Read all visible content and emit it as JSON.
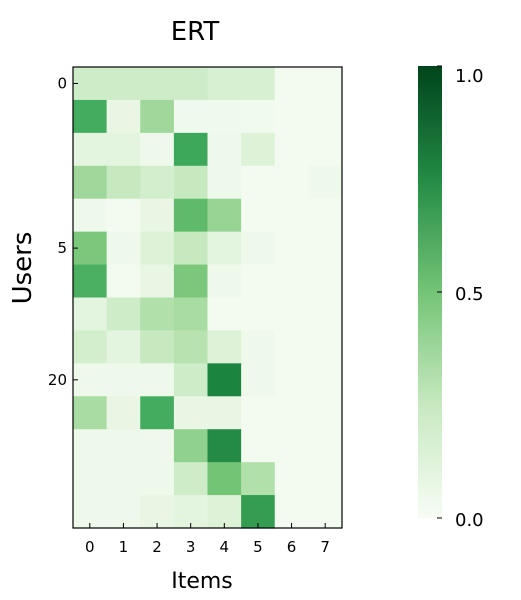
{
  "chart_data": {
    "type": "heatmap",
    "title": "ERT",
    "xlabel": "Items",
    "ylabel": "Users",
    "x_tick_labels": [
      "0",
      "1",
      "2",
      "3",
      "4",
      "5",
      "6",
      "7"
    ],
    "y_tick_labels": [
      {
        "row": 0,
        "label": "0"
      },
      {
        "row": 5,
        "label": "5"
      },
      {
        "row": 9,
        "label": "20"
      }
    ],
    "n_rows": 14,
    "n_cols": 8,
    "values": [
      [
        0.22,
        0.22,
        0.22,
        0.22,
        0.18,
        0.18,
        0.03,
        0.03
      ],
      [
        0.62,
        0.1,
        0.38,
        0.05,
        0.05,
        0.04,
        0.03,
        0.03
      ],
      [
        0.13,
        0.13,
        0.06,
        0.64,
        0.06,
        0.16,
        0.03,
        0.03
      ],
      [
        0.38,
        0.25,
        0.2,
        0.25,
        0.06,
        0.03,
        0.03,
        0.06
      ],
      [
        0.06,
        0.03,
        0.1,
        0.55,
        0.4,
        0.03,
        0.03,
        0.03
      ],
      [
        0.48,
        0.06,
        0.16,
        0.25,
        0.13,
        0.06,
        0.03,
        0.03
      ],
      [
        0.6,
        0.03,
        0.1,
        0.48,
        0.06,
        0.03,
        0.03,
        0.03
      ],
      [
        0.13,
        0.22,
        0.32,
        0.35,
        0.03,
        0.03,
        0.03,
        0.03
      ],
      [
        0.2,
        0.13,
        0.25,
        0.3,
        0.16,
        0.06,
        0.03,
        0.03
      ],
      [
        0.06,
        0.06,
        0.06,
        0.22,
        0.78,
        0.06,
        0.03,
        0.03
      ],
      [
        0.35,
        0.1,
        0.62,
        0.1,
        0.1,
        0.03,
        0.03,
        0.03
      ],
      [
        0.06,
        0.06,
        0.06,
        0.42,
        0.75,
        0.03,
        0.03,
        0.03
      ],
      [
        0.06,
        0.06,
        0.06,
        0.22,
        0.5,
        0.32,
        0.03,
        0.03
      ],
      [
        0.06,
        0.06,
        0.1,
        0.13,
        0.16,
        0.68,
        0.03,
        0.03
      ]
    ],
    "colorbar": {
      "min": 0.0,
      "max": 1.0,
      "tick_labels": [
        {
          "value": 1.0,
          "label": "1.0"
        },
        {
          "value": 0.5,
          "label": "0.5"
        },
        {
          "value": 0.0,
          "label": "0.0"
        }
      ]
    },
    "colormap": "Greens",
    "colors": {
      "low": "#f7fcf5",
      "high": "#00441b"
    },
    "grid": false
  }
}
